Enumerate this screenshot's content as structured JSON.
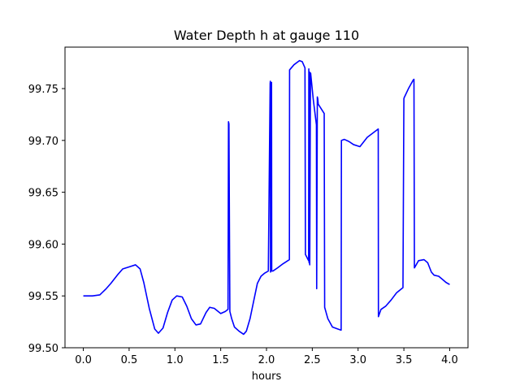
{
  "chart_data": {
    "type": "line",
    "title": "Water Depth h at gauge 110",
    "xlabel": "hours",
    "ylabel": "",
    "xlim": [
      -0.2,
      4.2
    ],
    "ylim": [
      99.5,
      99.79
    ],
    "xticks": [
      0.0,
      0.5,
      1.0,
      1.5,
      2.0,
      2.5,
      3.0,
      3.5,
      4.0
    ],
    "xtick_labels": [
      "0.0",
      "0.5",
      "1.0",
      "1.5",
      "2.0",
      "2.5",
      "3.0",
      "3.5",
      "4.0"
    ],
    "yticks": [
      99.5,
      99.55,
      99.6,
      99.65,
      99.7,
      99.75
    ],
    "ytick_labels": [
      "99.50",
      "99.55",
      "99.60",
      "99.65",
      "99.70",
      "99.75"
    ],
    "grid": false,
    "series": [
      {
        "color": "#0000ff",
        "x": [
          0.0,
          0.1,
          0.18,
          0.25,
          0.3,
          0.38,
          0.43,
          0.5,
          0.57,
          0.62,
          0.66,
          0.72,
          0.78,
          0.82,
          0.87,
          0.92,
          0.97,
          1.02,
          1.08,
          1.13,
          1.18,
          1.23,
          1.28,
          1.34,
          1.38,
          1.43,
          1.5,
          1.55,
          1.58,
          1.585,
          1.59,
          1.6,
          1.62,
          1.65,
          1.7,
          1.75,
          1.78,
          1.82,
          1.86,
          1.9,
          1.94,
          1.98,
          2.02,
          2.04,
          2.042,
          2.044,
          2.055,
          2.057,
          2.07,
          2.12,
          2.18,
          2.25,
          2.252,
          2.3,
          2.36,
          2.39,
          2.42,
          2.425,
          2.46,
          2.462,
          2.465,
          2.47,
          2.472,
          2.48,
          2.482,
          2.51,
          2.545,
          2.548,
          2.555,
          2.56,
          2.565,
          2.63,
          2.635,
          2.67,
          2.72,
          2.78,
          2.815,
          2.818,
          2.85,
          2.9,
          2.95,
          3.02,
          3.1,
          3.22,
          3.222,
          3.25,
          3.3,
          3.36,
          3.42,
          3.49,
          3.5,
          3.502,
          3.55,
          3.6,
          3.61,
          3.615,
          3.66,
          3.72,
          3.76,
          3.8,
          3.83,
          3.88,
          3.92,
          3.96,
          4.0
        ],
        "y": [
          99.55,
          99.55,
          99.551,
          99.557,
          99.562,
          99.571,
          99.576,
          99.578,
          99.58,
          99.576,
          99.563,
          99.538,
          99.518,
          99.514,
          99.519,
          99.534,
          99.546,
          99.55,
          99.549,
          99.54,
          99.528,
          99.522,
          99.523,
          99.534,
          99.539,
          99.538,
          99.533,
          99.535,
          99.537,
          99.718,
          99.716,
          99.535,
          99.528,
          99.52,
          99.516,
          99.513,
          99.516,
          99.528,
          99.545,
          99.562,
          99.569,
          99.572,
          99.574,
          99.755,
          99.757,
          99.573,
          99.756,
          99.574,
          99.574,
          99.577,
          99.581,
          99.585,
          99.768,
          99.773,
          99.777,
          99.776,
          99.77,
          99.59,
          99.584,
          99.769,
          99.582,
          99.766,
          99.58,
          99.763,
          99.765,
          99.74,
          99.715,
          99.557,
          99.742,
          99.74,
          99.735,
          99.726,
          99.539,
          99.528,
          99.52,
          99.518,
          99.517,
          99.7,
          99.701,
          99.699,
          99.696,
          99.694,
          99.703,
          99.711,
          99.53,
          99.537,
          99.54,
          99.546,
          99.553,
          99.558,
          99.74,
          99.741,
          99.75,
          99.758,
          99.759,
          99.577,
          99.584,
          99.585,
          99.582,
          99.573,
          99.57,
          99.569,
          99.566,
          99.563,
          99.561
        ]
      }
    ]
  }
}
